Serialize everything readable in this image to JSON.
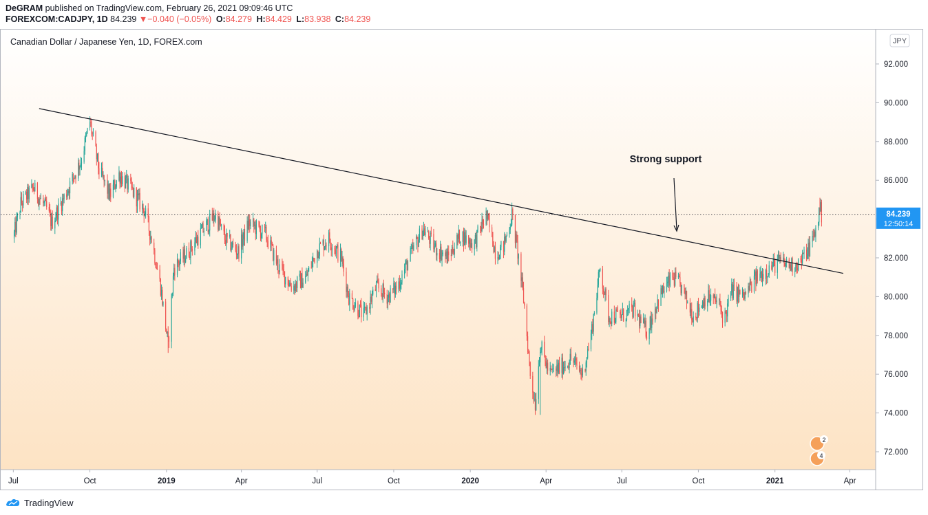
{
  "header": {
    "author": "DeGRAM",
    "published": "published on TradingView.com, February 26, 2021 09:09:46 UTC",
    "symbol": "FOREXCOM:CADJPY, 1D",
    "last": "84.239",
    "change_arrow": "▼",
    "change": "−0.040 (−0.05%)",
    "o_label": "O:",
    "o_value": "84.279",
    "h_label": "H:",
    "h_value": "84.429",
    "l_label": "L:",
    "l_value": "83.938",
    "c_label": "C:",
    "c_value": "84.239"
  },
  "footer": {
    "brand": "TradingView",
    "logo_icon": "tradingview-logo-icon"
  },
  "colors": {
    "up": "#26a69a",
    "down": "#ef5350",
    "accent": "#2196f3",
    "trendline": "#131722"
  },
  "chart_data": {
    "type": "candlestick",
    "title": "Canadian Dollar / Japanese Yen, 1D, FOREX.com",
    "currency": "JPY",
    "y_ticks": [
      "92.000",
      "90.000",
      "88.000",
      "86.000",
      "84.000",
      "82.000",
      "80.000",
      "78.000",
      "76.000",
      "74.000",
      "72.000"
    ],
    "ylim": [
      71,
      93.5
    ],
    "x_ticks": [
      "Jul",
      "Oct",
      "2019",
      "Apr",
      "Jul",
      "Oct",
      "2020",
      "Apr",
      "Jul",
      "Oct",
      "2021",
      "Apr"
    ],
    "x_ticks_bold": [
      "2019",
      "2020",
      "2021"
    ],
    "price_label": {
      "value": "84.239",
      "countdown": "12:50:14"
    },
    "annotation": {
      "text": "Strong support",
      "icon": "arrow-down-icon"
    },
    "trendline": {
      "start": [
        "2018-08-01",
        89.7
      ],
      "end": [
        "2021-03-24",
        81.2
      ]
    },
    "closes_path": [
      [
        "2018-07-01",
        83.0
      ],
      [
        "2018-07-10",
        84.8
      ],
      [
        "2018-07-25",
        85.6
      ],
      [
        "2018-08-10",
        84.5
      ],
      [
        "2018-08-16",
        83.8
      ],
      [
        "2018-09-01",
        85.2
      ],
      [
        "2018-09-20",
        87.0
      ],
      [
        "2018-10-01",
        89.0
      ],
      [
        "2018-10-12",
        86.5
      ],
      [
        "2018-10-25",
        85.2
      ],
      [
        "2018-11-05",
        86.3
      ],
      [
        "2018-11-20",
        85.5
      ],
      [
        "2018-12-05",
        84.5
      ],
      [
        "2018-12-14",
        83.0
      ],
      [
        "2018-12-25",
        80.5
      ],
      [
        "2019-01-03",
        77.5
      ],
      [
        "2019-01-10",
        81.5
      ],
      [
        "2019-01-25",
        82.2
      ],
      [
        "2019-02-15",
        83.5
      ],
      [
        "2019-03-01",
        84.2
      ],
      [
        "2019-03-12",
        83.0
      ],
      [
        "2019-03-28",
        82.3
      ],
      [
        "2019-04-10",
        83.8
      ],
      [
        "2019-04-30",
        83.2
      ],
      [
        "2019-05-15",
        81.6
      ],
      [
        "2019-06-01",
        80.5
      ],
      [
        "2019-06-18",
        81.0
      ],
      [
        "2019-07-01",
        82.4
      ],
      [
        "2019-07-15",
        83.0
      ],
      [
        "2019-07-30",
        82.0
      ],
      [
        "2019-08-08",
        80.0
      ],
      [
        "2019-08-26",
        79.0
      ],
      [
        "2019-09-10",
        80.5
      ],
      [
        "2019-09-24",
        80.0
      ],
      [
        "2019-10-05",
        80.5
      ],
      [
        "2019-10-20",
        82.0
      ],
      [
        "2019-11-05",
        83.5
      ],
      [
        "2019-11-20",
        82.5
      ],
      [
        "2019-12-05",
        82.0
      ],
      [
        "2019-12-20",
        83.2
      ],
      [
        "2020-01-05",
        82.7
      ],
      [
        "2020-01-20",
        84.2
      ],
      [
        "2020-02-01",
        82.2
      ],
      [
        "2020-02-10",
        82.6
      ],
      [
        "2020-02-20",
        84.2
      ],
      [
        "2020-02-28",
        82.0
      ],
      [
        "2020-03-06",
        79.5
      ],
      [
        "2020-03-13",
        76.0
      ],
      [
        "2020-03-19",
        74.5
      ],
      [
        "2020-03-25",
        77.5
      ],
      [
        "2020-04-05",
        76.0
      ],
      [
        "2020-04-20",
        76.4
      ],
      [
        "2020-05-01",
        76.8
      ],
      [
        "2020-05-15",
        76.0
      ],
      [
        "2020-05-25",
        78.0
      ],
      [
        "2020-06-05",
        81.5
      ],
      [
        "2020-06-15",
        79.0
      ],
      [
        "2020-07-01",
        79.0
      ],
      [
        "2020-07-15",
        79.3
      ],
      [
        "2020-07-31",
        78.2
      ],
      [
        "2020-08-15",
        80.0
      ],
      [
        "2020-08-31",
        81.0
      ],
      [
        "2020-09-10",
        80.5
      ],
      [
        "2020-09-25",
        79.0
      ],
      [
        "2020-10-10",
        80.0
      ],
      [
        "2020-10-25",
        79.7
      ],
      [
        "2020-11-01",
        78.8
      ],
      [
        "2020-11-10",
        80.3
      ],
      [
        "2020-11-25",
        80.0
      ],
      [
        "2020-12-10",
        81.0
      ],
      [
        "2020-12-20",
        81.3
      ],
      [
        "2021-01-05",
        81.8
      ],
      [
        "2021-01-20",
        81.6
      ],
      [
        "2021-02-01",
        81.8
      ],
      [
        "2021-02-12",
        82.6
      ],
      [
        "2021-02-19",
        83.4
      ],
      [
        "2021-02-24",
        84.6
      ],
      [
        "2021-02-26",
        84.239
      ]
    ],
    "spikes": [
      {
        "date": "2018-10-01",
        "high": 89.3
      },
      {
        "date": "2019-01-03",
        "low": 77.1
      },
      {
        "date": "2020-02-20",
        "high": 84.7
      },
      {
        "date": "2020-03-19",
        "low": 73.9
      },
      {
        "date": "2020-03-25",
        "low": 73.9
      },
      {
        "date": "2021-02-24",
        "high": 85.1
      }
    ]
  }
}
